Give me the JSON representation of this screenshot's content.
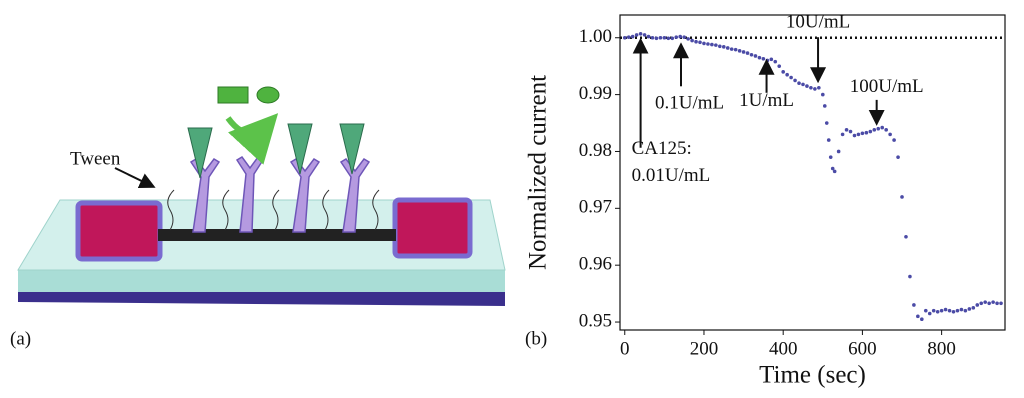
{
  "panel_a": {
    "panel_label": "(a)",
    "annotation": "Tween"
  },
  "chart_data": {
    "type": "scatter",
    "panel_label": "(b)",
    "x_label": "Time (sec)",
    "y_label": "Normalized current",
    "xlim": [
      -12,
      960
    ],
    "ylim": [
      0.9486,
      1.004
    ],
    "xticks": [
      0,
      200,
      400,
      600,
      800
    ],
    "yticks": [
      0.95,
      0.96,
      0.97,
      0.98,
      0.99,
      {
        "value": 1,
        "label": "1.00"
      }
    ],
    "reference_line": 1,
    "color": "#4b4ba6",
    "x": [
      0,
      10,
      20,
      30,
      40,
      50,
      60,
      70,
      80,
      90,
      100,
      110,
      120,
      130,
      140,
      150,
      160,
      170,
      180,
      190,
      200,
      210,
      220,
      230,
      240,
      250,
      260,
      270,
      280,
      290,
      300,
      310,
      320,
      330,
      340,
      350,
      360,
      370,
      380,
      390,
      400,
      410,
      420,
      430,
      440,
      450,
      460,
      470,
      480,
      490,
      500,
      505,
      510,
      515,
      520,
      525,
      530,
      540,
      550,
      560,
      570,
      580,
      590,
      600,
      610,
      620,
      630,
      640,
      650,
      660,
      670,
      680,
      690,
      700,
      710,
      720,
      730,
      740,
      750,
      760,
      770,
      780,
      790,
      800,
      810,
      820,
      830,
      840,
      850,
      860,
      870,
      880,
      890,
      900,
      910,
      920,
      930,
      940,
      950
    ],
    "values": [
      1.0,
      1.0001,
      1.0002,
      1.0005,
      1.0007,
      1.0005,
      1.0002,
      1.0,
      0.9999,
      1.0,
      1.0,
      0.9999,
      0.9999,
      1.0001,
      1.0002,
      1.0001,
      0.9998,
      0.9995,
      0.9993,
      0.9992,
      0.999,
      0.9989,
      0.9988,
      0.9987,
      0.9985,
      0.9984,
      0.9982,
      0.998,
      0.9979,
      0.9977,
      0.9975,
      0.9973,
      0.997,
      0.9968,
      0.9965,
      0.9963,
      0.996,
      0.9962,
      0.9958,
      0.995,
      0.994,
      0.9935,
      0.993,
      0.9925,
      0.992,
      0.9918,
      0.9915,
      0.9912,
      0.991,
      0.9912,
      0.99,
      0.988,
      0.985,
      0.982,
      0.979,
      0.977,
      0.9765,
      0.98,
      0.983,
      0.9838,
      0.9835,
      0.9828,
      0.983,
      0.9832,
      0.9833,
      0.9835,
      0.9838,
      0.984,
      0.9842,
      0.9838,
      0.983,
      0.982,
      0.979,
      0.972,
      0.965,
      0.958,
      0.953,
      0.951,
      0.9505,
      0.952,
      0.9515,
      0.952,
      0.9518,
      0.952,
      0.9522,
      0.952,
      0.9518,
      0.952,
      0.9522,
      0.952,
      0.9523,
      0.9525,
      0.953,
      0.9533,
      0.9535,
      0.9533,
      0.9535,
      0.9533,
      0.9533
    ],
    "annotations": [
      {
        "lines": [
          "CA125:",
          "0.01U/mL"
        ],
        "x": 40,
        "y": 1.0
      },
      {
        "lines": [
          "0.1U/mL"
        ],
        "x": 142,
        "y": 0.9992
      },
      {
        "lines": [
          "1U/mL"
        ],
        "x": 358,
        "y": 0.9963
      },
      {
        "lines": [
          "10U/mL"
        ],
        "x": 488,
        "y": 0.992
      },
      {
        "lines": [
          "100U/mL"
        ],
        "x": 636,
        "y": 0.9845
      }
    ]
  }
}
